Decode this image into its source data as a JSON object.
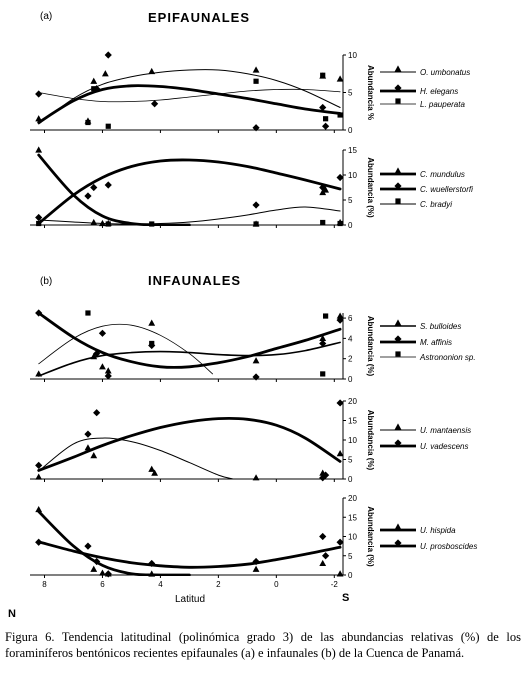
{
  "headers": [
    {
      "part": "(a)",
      "title": "EPIFAUNALES"
    },
    {
      "part": "(b)",
      "title": "INFAUNALES"
    }
  ],
  "x_axis": {
    "label": "Latitud",
    "left_end": "N",
    "right_end": "S"
  },
  "caption": "Figura 6. Tendencia latitudinal (polinómica grado 3) de las abundancias relativas (%) de los foraminíferos bentónicos recientes epifaunales (a) e infaunales (b) de la Cuenca de Panamá.",
  "chart_data": [
    {
      "type": "scatter",
      "panel": "a-1",
      "xlabel": "",
      "ylabel": "Abundancia %",
      "xlim": [
        8.5,
        -2.3
      ],
      "ylim": [
        0,
        10
      ],
      "yticks": [
        0,
        5,
        10
      ],
      "series": [
        {
          "name": "O. umbonatus",
          "marker": "triangle",
          "line": "thin",
          "points": [
            [
              8.2,
              1.5
            ],
            [
              6.5,
              1.2
            ],
            [
              6.3,
              6.5
            ],
            [
              5.9,
              7.5
            ],
            [
              4.3,
              7.8
            ],
            [
              0.7,
              8.0
            ],
            [
              -1.6,
              7.2
            ],
            [
              -2.2,
              6.8
            ]
          ],
          "trend": [
            [
              8.2,
              0.8
            ],
            [
              7.0,
              4.2
            ],
            [
              6.0,
              6.1
            ],
            [
              5.0,
              7.1
            ],
            [
              4.0,
              7.7
            ],
            [
              3.0,
              8.0
            ],
            [
              2.0,
              8.0
            ],
            [
              1.0,
              7.5
            ],
            [
              0.0,
              6.6
            ],
            [
              -1.0,
              5.2
            ],
            [
              -2.2,
              3.0
            ]
          ]
        },
        {
          "name": "H. elegans",
          "marker": "diamond",
          "line": "thick",
          "points": [
            [
              8.2,
              4.8
            ],
            [
              6.2,
              5.5
            ],
            [
              5.8,
              10.0
            ],
            [
              4.2,
              3.5
            ],
            [
              0.7,
              0.3
            ],
            [
              -1.6,
              3.0
            ],
            [
              -1.7,
              0.5
            ]
          ],
          "trend": [
            [
              8.2,
              1.0
            ],
            [
              7.0,
              3.9
            ],
            [
              6.0,
              5.4
            ],
            [
              5.0,
              5.9
            ],
            [
              4.0,
              5.8
            ],
            [
              3.0,
              5.4
            ],
            [
              2.0,
              4.8
            ],
            [
              1.0,
              4.2
            ],
            [
              0.0,
              3.5
            ],
            [
              -1.0,
              2.8
            ],
            [
              -2.2,
              2.2
            ]
          ]
        },
        {
          "name": "L. pauperata",
          "marker": "square",
          "line": "hairline",
          "points": [
            [
              6.5,
              1.0
            ],
            [
              6.3,
              5.5
            ],
            [
              5.8,
              0.5
            ],
            [
              0.7,
              6.5
            ],
            [
              -1.6,
              7.3
            ],
            [
              -1.7,
              1.5
            ],
            [
              -2.2,
              2.0
            ]
          ],
          "trend": [
            [
              8.2,
              5.0
            ],
            [
              7.0,
              4.2
            ],
            [
              6.0,
              3.8
            ],
            [
              5.0,
              3.8
            ],
            [
              4.0,
              4.0
            ],
            [
              3.0,
              4.4
            ],
            [
              2.0,
              4.8
            ],
            [
              1.0,
              5.2
            ],
            [
              0.0,
              5.4
            ],
            [
              -1.0,
              5.4
            ],
            [
              -2.2,
              5.1
            ]
          ]
        }
      ]
    },
    {
      "type": "scatter",
      "panel": "a-2",
      "xlabel": "",
      "ylabel": "Abundancia (%)",
      "xlim": [
        8.5,
        -2.3
      ],
      "ylim": [
        0,
        15
      ],
      "yticks": [
        0,
        5,
        10,
        15
      ],
      "series": [
        {
          "name": "C. mundulus",
          "marker": "triangle",
          "line": "thick",
          "points": [
            [
              8.2,
              15.0
            ],
            [
              6.3,
              0.5
            ],
            [
              6.0,
              0.3
            ],
            [
              5.8,
              0.3
            ],
            [
              0.7,
              0.2
            ],
            [
              -1.6,
              6.5
            ],
            [
              -1.7,
              7.0
            ],
            [
              -2.2,
              0.5
            ]
          ],
          "trend": [
            [
              8.2,
              14.0
            ],
            [
              7.0,
              6.0
            ],
            [
              6.0,
              1.8
            ],
            [
              5.0,
              0.3
            ],
            [
              4.0,
              0.0
            ],
            [
              3.0,
              0.0
            ]
          ]
        },
        {
          "name": "C. wuellerstorfi",
          "marker": "diamond",
          "line": "thick",
          "points": [
            [
              8.2,
              1.5
            ],
            [
              6.5,
              5.8
            ],
            [
              6.3,
              7.5
            ],
            [
              5.8,
              8.0
            ],
            [
              0.7,
              4.0
            ],
            [
              -1.6,
              7.5
            ],
            [
              -2.2,
              9.5
            ]
          ],
          "trend": [
            [
              8.2,
              0.3
            ],
            [
              7.0,
              6.0
            ],
            [
              6.0,
              9.5
            ],
            [
              5.0,
              11.7
            ],
            [
              4.0,
              12.8
            ],
            [
              3.0,
              13.0
            ],
            [
              2.0,
              12.6
            ],
            [
              1.0,
              11.7
            ],
            [
              0.0,
              10.4
            ],
            [
              -1.0,
              9.0
            ],
            [
              -2.2,
              7.2
            ]
          ]
        },
        {
          "name": "C. bradyi",
          "marker": "square",
          "line": "thin",
          "points": [
            [
              8.2,
              0.3
            ],
            [
              5.8,
              0.2
            ],
            [
              4.3,
              0.1
            ],
            [
              0.7,
              0.2
            ],
            [
              -1.6,
              0.5
            ],
            [
              -2.2,
              0.3
            ]
          ],
          "trend": [
            [
              8.2,
              1.0
            ],
            [
              7.0,
              0.6
            ],
            [
              6.0,
              0.3
            ],
            [
              5.0,
              0.2
            ],
            [
              4.0,
              0.3
            ],
            [
              3.0,
              0.6
            ],
            [
              2.0,
              1.2
            ],
            [
              1.0,
              2.0
            ],
            [
              0.0,
              3.0
            ],
            [
              -1.0,
              3.6
            ],
            [
              -2.2,
              2.8
            ]
          ]
        }
      ]
    },
    {
      "type": "scatter",
      "panel": "b-1",
      "xlabel": "",
      "ylabel": "Abundancia (%)",
      "xlim": [
        8.5,
        -2.3
      ],
      "ylim": [
        0,
        6.5
      ],
      "yticks": [
        0,
        2,
        4,
        6
      ],
      "series": [
        {
          "name": "S. bulloides",
          "marker": "triangle",
          "line": "normal",
          "points": [
            [
              8.2,
              0.5
            ],
            [
              6.3,
              2.2
            ],
            [
              6.0,
              1.2
            ],
            [
              5.8,
              0.8
            ],
            [
              4.3,
              5.5
            ],
            [
              0.7,
              1.8
            ],
            [
              -1.6,
              4.0
            ],
            [
              -2.2,
              6.2
            ]
          ],
          "trend": [
            [
              8.2,
              0.3
            ],
            [
              7.0,
              1.6
            ],
            [
              6.0,
              2.3
            ],
            [
              5.0,
              2.6
            ],
            [
              4.0,
              2.7
            ],
            [
              3.0,
              2.6
            ],
            [
              2.0,
              2.4
            ],
            [
              1.0,
              2.3
            ],
            [
              0.0,
              2.4
            ],
            [
              -1.0,
              2.8
            ],
            [
              -2.2,
              3.6
            ]
          ]
        },
        {
          "name": "M. affinis",
          "marker": "diamond",
          "line": "thick",
          "points": [
            [
              8.2,
              6.5
            ],
            [
              6.2,
              2.5
            ],
            [
              6.0,
              4.5
            ],
            [
              5.8,
              0.3
            ],
            [
              4.3,
              3.3
            ],
            [
              0.7,
              0.2
            ],
            [
              -1.6,
              3.5
            ],
            [
              -2.2,
              5.8
            ]
          ],
          "trend": [
            [
              8.2,
              6.5
            ],
            [
              7.0,
              4.1
            ],
            [
              6.0,
              2.6
            ],
            [
              5.0,
              1.7
            ],
            [
              4.0,
              1.2
            ],
            [
              3.0,
              1.2
            ],
            [
              2.0,
              1.6
            ],
            [
              1.0,
              2.2
            ],
            [
              0.0,
              3.0
            ],
            [
              -1.0,
              3.8
            ],
            [
              -2.2,
              4.9
            ]
          ]
        },
        {
          "name": "Astrononion sp.",
          "marker": "square",
          "line": "hairline",
          "points": [
            [
              6.5,
              6.5
            ],
            [
              4.3,
              3.5
            ],
            [
              -1.6,
              0.5
            ],
            [
              -1.7,
              6.2
            ]
          ],
          "trend": [
            [
              8.2,
              1.5
            ],
            [
              7.0,
              4.0
            ],
            [
              6.0,
              5.2
            ],
            [
              5.0,
              5.3
            ],
            [
              4.0,
              4.3
            ],
            [
              3.0,
              2.5
            ],
            [
              2.2,
              0.5
            ]
          ]
        }
      ]
    },
    {
      "type": "scatter",
      "panel": "b-2",
      "xlabel": "",
      "ylabel": "Abundancia (%)",
      "xlim": [
        8.5,
        -2.3
      ],
      "ylim": [
        0,
        20
      ],
      "yticks": [
        0,
        5,
        10,
        15,
        20
      ],
      "series": [
        {
          "name": "U. mantaensis",
          "marker": "triangle",
          "line": "thin",
          "points": [
            [
              8.2,
              0.5
            ],
            [
              6.5,
              8.0
            ],
            [
              6.3,
              6.0
            ],
            [
              4.3,
              2.5
            ],
            [
              4.2,
              1.5
            ],
            [
              0.7,
              0.3
            ],
            [
              -1.6,
              1.5
            ],
            [
              -2.2,
              6.5
            ]
          ],
          "trend": [
            [
              8.2,
              2.0
            ],
            [
              7.0,
              9.0
            ],
            [
              6.0,
              10.5
            ],
            [
              5.0,
              9.6
            ],
            [
              4.0,
              7.3
            ],
            [
              3.0,
              4.2
            ],
            [
              2.0,
              1.0
            ],
            [
              1.5,
              0.0
            ]
          ]
        },
        {
          "name": "U. vadescens",
          "marker": "diamond",
          "line": "thick",
          "points": [
            [
              8.2,
              3.5
            ],
            [
              6.5,
              11.5
            ],
            [
              6.2,
              17.0
            ],
            [
              -1.6,
              0.3
            ],
            [
              -1.7,
              1.0
            ],
            [
              -2.2,
              19.5
            ]
          ],
          "trend": [
            [
              8.2,
              2.2
            ],
            [
              7.0,
              5.6
            ],
            [
              6.0,
              8.6
            ],
            [
              5.0,
              11.1
            ],
            [
              4.0,
              13.2
            ],
            [
              3.0,
              14.7
            ],
            [
              2.0,
              15.5
            ],
            [
              1.0,
              15.3
            ],
            [
              0.0,
              13.8
            ],
            [
              -1.0,
              10.5
            ],
            [
              -2.2,
              4.5
            ]
          ]
        }
      ]
    },
    {
      "type": "scatter",
      "panel": "b-3",
      "xlabel": "Latitud",
      "ylabel": "Abundancia (%)",
      "xlim": [
        8.5,
        -2.3
      ],
      "ylim": [
        0,
        20
      ],
      "yticks": [
        0,
        5,
        10,
        15,
        20
      ],
      "xticks": [
        8,
        6,
        4,
        2,
        0,
        -2
      ],
      "series": [
        {
          "name": "U. hispida",
          "marker": "triangle",
          "line": "thick",
          "points": [
            [
              8.2,
              17.0
            ],
            [
              6.3,
              1.5
            ],
            [
              6.0,
              0.5
            ],
            [
              5.8,
              0.3
            ],
            [
              4.3,
              0.2
            ],
            [
              0.7,
              1.5
            ],
            [
              -1.6,
              3.0
            ],
            [
              -2.2,
              0.3
            ]
          ],
          "trend": [
            [
              8.2,
              16.5
            ],
            [
              7.0,
              7.5
            ],
            [
              6.0,
              2.5
            ],
            [
              5.0,
              0.3
            ],
            [
              4.0,
              0.0
            ],
            [
              3.0,
              0.0
            ]
          ]
        },
        {
          "name": "U. prosboscides",
          "marker": "diamond",
          "line": "thick",
          "points": [
            [
              8.2,
              8.5
            ],
            [
              6.5,
              7.5
            ],
            [
              6.2,
              3.5
            ],
            [
              5.8,
              0.3
            ],
            [
              4.3,
              3.0
            ],
            [
              0.7,
              3.5
            ],
            [
              -1.6,
              10.0
            ],
            [
              -1.7,
              5.0
            ],
            [
              -2.2,
              8.5
            ]
          ],
          "trend": [
            [
              8.2,
              8.6
            ],
            [
              7.0,
              6.2
            ],
            [
              6.0,
              4.5
            ],
            [
              5.0,
              3.2
            ],
            [
              4.0,
              2.4
            ],
            [
              3.0,
              2.0
            ],
            [
              2.0,
              2.2
            ],
            [
              1.0,
              2.8
            ],
            [
              0.0,
              4.0
            ],
            [
              -1.0,
              5.4
            ],
            [
              -2.2,
              7.2
            ]
          ]
        }
      ]
    }
  ]
}
